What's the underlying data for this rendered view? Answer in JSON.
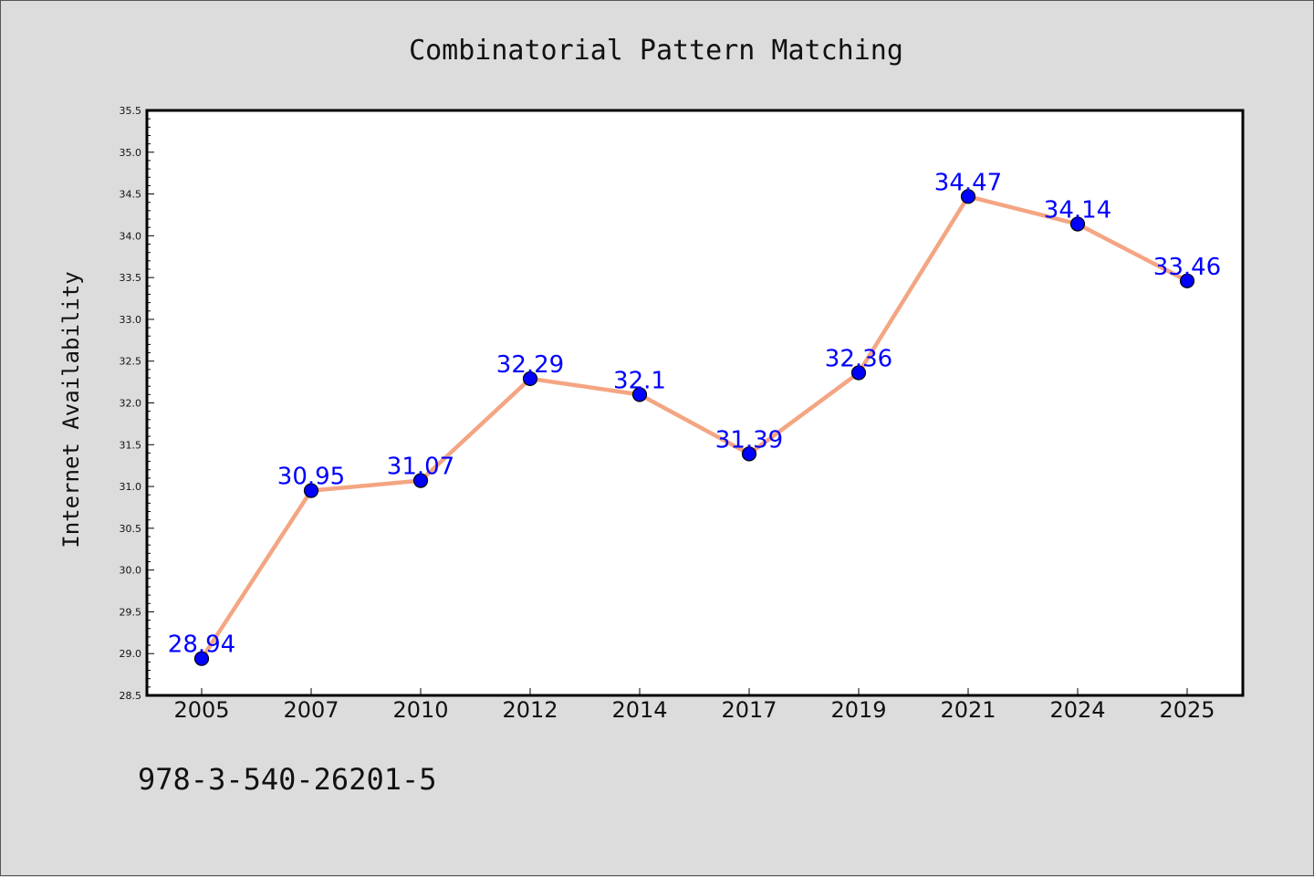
{
  "chart_data": {
    "type": "line",
    "title": "Combinatorial Pattern Matching",
    "xlabel": "",
    "ylabel": "Internet Availability",
    "categories": [
      "2005",
      "2007",
      "2010",
      "2012",
      "2014",
      "2017",
      "2019",
      "2021",
      "2024",
      "2025"
    ],
    "series": [
      {
        "values": [
          28.94,
          30.95,
          31.07,
          32.29,
          32.1,
          31.39,
          32.36,
          34.47,
          34.14,
          33.46
        ],
        "data_labels": [
          "28.94",
          "30.95",
          "31.07",
          "32.29",
          "32.1",
          "31.39",
          "32.36",
          "34.47",
          "34.14",
          "33.46"
        ],
        "line_color": "#f4a582",
        "marker_color": "#0000ff"
      }
    ],
    "ylim": [
      28.5,
      35.5
    ],
    "yticks": [
      "28.5",
      "29.0",
      "29.5",
      "30.0",
      "30.5",
      "31.0",
      "31.5",
      "32.0",
      "32.5",
      "33.0",
      "33.5",
      "34.0",
      "34.5",
      "35.0",
      "35.5"
    ],
    "grid": false,
    "legend": "none"
  },
  "footer": {
    "text": "978-3-540-26201-5"
  },
  "colors": {
    "background": "#dcdcdc",
    "plot_background": "#ffffff",
    "line": "#f4a582",
    "marker": "#0000ff",
    "data_label": "#0000ff"
  }
}
